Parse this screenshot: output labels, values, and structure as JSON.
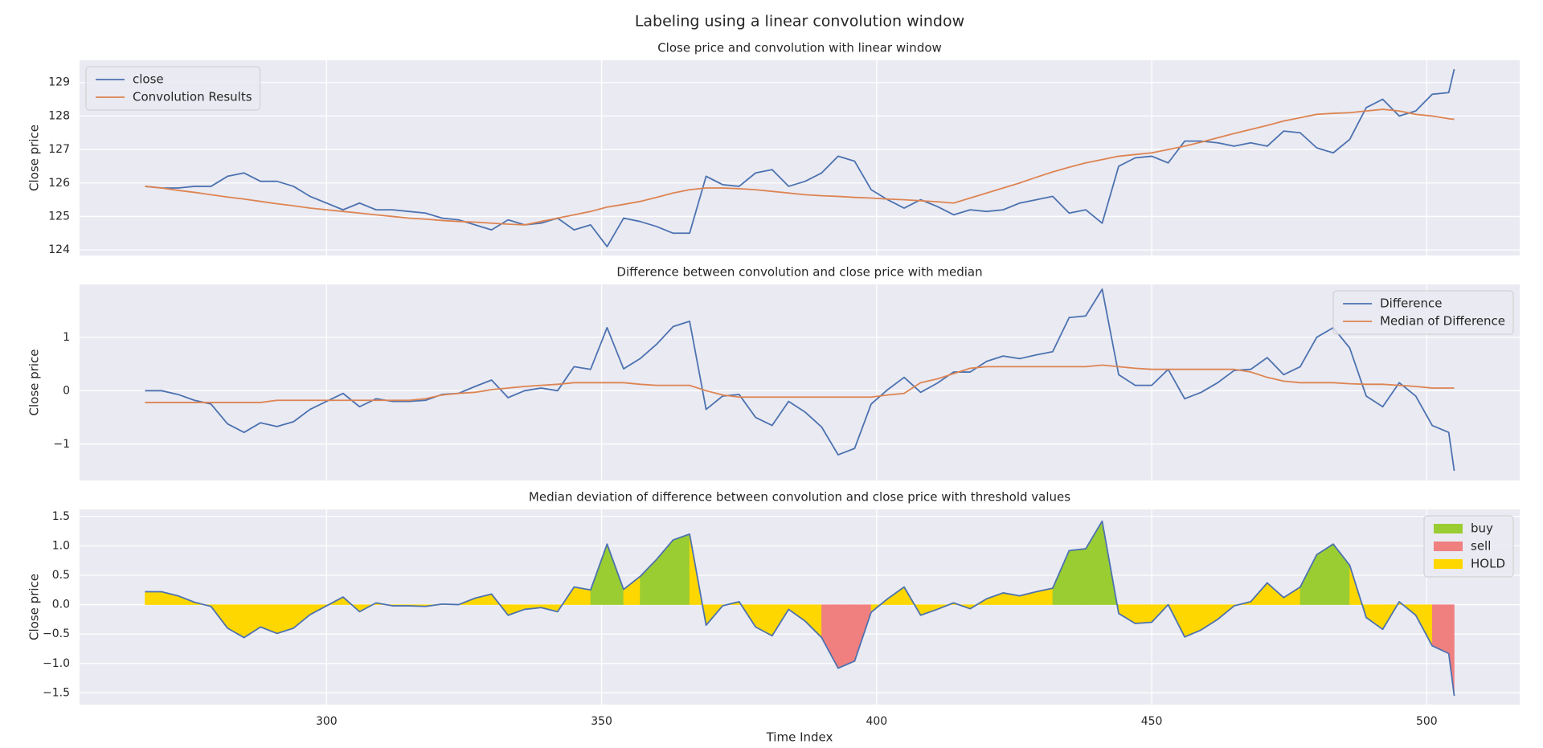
{
  "title": "Labeling using a linear convolution window",
  "chart_data": [
    {
      "type": "line",
      "title": "Close price and convolution with linear window",
      "ylabel": "Close price",
      "x": [
        267,
        270,
        273,
        276,
        279,
        282,
        285,
        288,
        291,
        294,
        297,
        300,
        303,
        306,
        309,
        312,
        315,
        318,
        321,
        324,
        327,
        330,
        333,
        336,
        339,
        342,
        345,
        348,
        351,
        354,
        357,
        360,
        363,
        366,
        369,
        372,
        375,
        378,
        381,
        384,
        387,
        390,
        393,
        396,
        399,
        402,
        405,
        408,
        411,
        414,
        417,
        420,
        423,
        426,
        429,
        432,
        435,
        438,
        441,
        444,
        447,
        450,
        453,
        456,
        459,
        462,
        465,
        468,
        471,
        474,
        477,
        480,
        483,
        486,
        489,
        492,
        495,
        498,
        501,
        504,
        505
      ],
      "series": [
        {
          "name": "close",
          "color": "#4c72b0",
          "values": [
            125.9,
            125.85,
            125.85,
            125.9,
            125.9,
            126.2,
            126.3,
            126.05,
            126.05,
            125.9,
            125.6,
            125.4,
            125.2,
            125.4,
            125.2,
            125.2,
            125.15,
            125.1,
            124.95,
            124.9,
            124.75,
            124.6,
            124.9,
            124.75,
            124.8,
            124.95,
            124.6,
            124.75,
            124.1,
            124.95,
            124.85,
            124.7,
            124.5,
            124.5,
            126.2,
            125.95,
            125.9,
            126.3,
            126.4,
            125.9,
            126.05,
            126.3,
            126.8,
            126.65,
            125.8,
            125.5,
            125.25,
            125.5,
            125.3,
            125.05,
            125.2,
            125.15,
            125.2,
            125.4,
            125.5,
            125.6,
            125.1,
            125.2,
            124.8,
            126.5,
            126.75,
            126.8,
            126.6,
            127.25,
            127.25,
            127.2,
            127.1,
            127.2,
            127.1,
            127.55,
            127.5,
            127.05,
            126.9,
            127.3,
            128.25,
            128.5,
            128.0,
            128.15,
            128.65,
            128.7,
            129.4
          ]
        },
        {
          "name": "Convolution Results",
          "color": "#dd8452",
          "values": [
            125.9,
            125.85,
            125.78,
            125.72,
            125.65,
            125.58,
            125.52,
            125.45,
            125.38,
            125.32,
            125.25,
            125.2,
            125.15,
            125.1,
            125.05,
            125.0,
            124.95,
            124.92,
            124.88,
            124.85,
            124.83,
            124.8,
            124.77,
            124.75,
            124.85,
            124.95,
            125.05,
            125.15,
            125.28,
            125.36,
            125.45,
            125.57,
            125.7,
            125.8,
            125.85,
            125.85,
            125.83,
            125.8,
            125.75,
            125.7,
            125.65,
            125.62,
            125.6,
            125.57,
            125.55,
            125.52,
            125.5,
            125.47,
            125.44,
            125.4,
            125.55,
            125.7,
            125.85,
            126.0,
            126.17,
            126.33,
            126.47,
            126.6,
            126.7,
            126.8,
            126.85,
            126.9,
            127.0,
            127.1,
            127.22,
            127.35,
            127.48,
            127.6,
            127.72,
            127.85,
            127.95,
            128.05,
            128.08,
            128.1,
            128.15,
            128.2,
            128.15,
            128.05,
            128.0,
            127.92,
            127.9
          ]
        }
      ],
      "xlim": [
        255.1,
        516.9
      ],
      "xticks": [
        300,
        350,
        400,
        450,
        500
      ],
      "ylim": [
        123.835,
        129.665
      ],
      "yticks": [
        124,
        125,
        126,
        127,
        128,
        129
      ],
      "grid": true,
      "legend": "upper left"
    },
    {
      "type": "line",
      "title": "Difference between convolution and close price with median",
      "ylabel": "Close price",
      "x": [
        267,
        270,
        273,
        276,
        279,
        282,
        285,
        288,
        291,
        294,
        297,
        300,
        303,
        306,
        309,
        312,
        315,
        318,
        321,
        324,
        327,
        330,
        333,
        336,
        339,
        342,
        345,
        348,
        351,
        354,
        357,
        360,
        363,
        366,
        369,
        372,
        375,
        378,
        381,
        384,
        387,
        390,
        393,
        396,
        399,
        402,
        405,
        408,
        411,
        414,
        417,
        420,
        423,
        426,
        429,
        432,
        435,
        438,
        441,
        444,
        447,
        450,
        453,
        456,
        459,
        462,
        465,
        468,
        471,
        474,
        477,
        480,
        483,
        486,
        489,
        492,
        495,
        498,
        501,
        504,
        505
      ],
      "series": [
        {
          "name": "Difference",
          "color": "#4c72b0",
          "values": [
            0,
            0,
            -0.07,
            -0.18,
            -0.25,
            -0.62,
            -0.78,
            -0.6,
            -0.67,
            -0.58,
            -0.35,
            -0.2,
            -0.05,
            -0.3,
            -0.15,
            -0.2,
            -0.2,
            -0.18,
            -0.07,
            -0.05,
            0.08,
            0.2,
            -0.13,
            0,
            0.05,
            0,
            0.45,
            0.4,
            1.18,
            0.41,
            0.6,
            0.87,
            1.2,
            1.3,
            -0.35,
            -0.1,
            -0.07,
            -0.5,
            -0.65,
            -0.2,
            -0.4,
            -0.68,
            -1.2,
            -1.08,
            -0.25,
            0.02,
            0.25,
            -0.03,
            0.14,
            0.35,
            0.35,
            0.55,
            0.65,
            0.6,
            0.67,
            0.73,
            1.37,
            1.4,
            1.9,
            0.3,
            0.1,
            0.1,
            0.4,
            -0.15,
            -0.03,
            0.15,
            0.38,
            0.4,
            0.62,
            0.3,
            0.45,
            1.0,
            1.18,
            0.8,
            -0.1,
            -0.3,
            0.15,
            -0.1,
            -0.65,
            -0.78,
            -1.5
          ]
        },
        {
          "name": "Median of Difference",
          "color": "#dd8452",
          "values": [
            -0.22,
            -0.22,
            -0.22,
            -0.22,
            -0.22,
            -0.22,
            -0.22,
            -0.22,
            -0.18,
            -0.18,
            -0.18,
            -0.18,
            -0.18,
            -0.18,
            -0.18,
            -0.18,
            -0.18,
            -0.15,
            -0.08,
            -0.05,
            -0.03,
            0.02,
            0.05,
            0.08,
            0.1,
            0.12,
            0.15,
            0.15,
            0.15,
            0.15,
            0.12,
            0.1,
            0.1,
            0.1,
            0,
            -0.08,
            -0.12,
            -0.12,
            -0.12,
            -0.12,
            -0.12,
            -0.12,
            -0.12,
            -0.12,
            -0.12,
            -0.08,
            -0.05,
            0.15,
            0.22,
            0.32,
            0.42,
            0.45,
            0.45,
            0.45,
            0.45,
            0.45,
            0.45,
            0.45,
            0.48,
            0.45,
            0.42,
            0.4,
            0.4,
            0.4,
            0.4,
            0.4,
            0.4,
            0.35,
            0.25,
            0.18,
            0.15,
            0.15,
            0.15,
            0.13,
            0.12,
            0.12,
            0.1,
            0.08,
            0.05,
            0.05,
            0.05
          ]
        }
      ],
      "xlim": [
        255.1,
        516.9
      ],
      "xticks": [
        300,
        350,
        400,
        450,
        500
      ],
      "ylim": [
        -1.68,
        1.99
      ],
      "yticks": [
        {
          "value": -1,
          "label": "−1"
        },
        0,
        1
      ],
      "grid": true,
      "legend": "upper right"
    },
    {
      "type": "area",
      "title": "Median deviation of difference between convolution and close price with threshold values",
      "ylabel": "Close price",
      "xlabel": "Time Index",
      "x": [
        267,
        270,
        273,
        276,
        279,
        282,
        285,
        288,
        291,
        294,
        297,
        300,
        303,
        306,
        309,
        312,
        315,
        318,
        321,
        324,
        327,
        330,
        333,
        336,
        339,
        342,
        345,
        348,
        351,
        354,
        357,
        360,
        363,
        366,
        369,
        372,
        375,
        378,
        381,
        384,
        387,
        390,
        393,
        396,
        399,
        402,
        405,
        408,
        411,
        414,
        417,
        420,
        423,
        426,
        429,
        432,
        435,
        438,
        441,
        444,
        447,
        450,
        453,
        456,
        459,
        462,
        465,
        468,
        471,
        474,
        477,
        480,
        483,
        486,
        489,
        492,
        495,
        498,
        501,
        504,
        505
      ],
      "values": [
        0.22,
        0.22,
        0.15,
        0.04,
        -0.03,
        -0.4,
        -0.56,
        -0.38,
        -0.49,
        -0.4,
        -0.17,
        -0.02,
        0.13,
        -0.12,
        0.03,
        -0.02,
        -0.02,
        -0.03,
        0.01,
        0,
        0.11,
        0.18,
        -0.18,
        -0.08,
        -0.05,
        -0.12,
        0.3,
        0.25,
        1.03,
        0.26,
        0.48,
        0.77,
        1.1,
        1.2,
        -0.35,
        -0.02,
        0.05,
        -0.38,
        -0.53,
        -0.08,
        -0.28,
        -0.56,
        -1.08,
        -0.96,
        -0.13,
        0.1,
        0.3,
        -0.18,
        -0.08,
        0.03,
        -0.07,
        0.1,
        0.2,
        0.15,
        0.22,
        0.28,
        0.92,
        0.95,
        1.42,
        -0.15,
        -0.32,
        -0.3,
        0,
        -0.55,
        -0.43,
        -0.25,
        -0.02,
        0.05,
        0.37,
        0.12,
        0.3,
        0.85,
        1.03,
        0.67,
        -0.22,
        -0.42,
        0.05,
        -0.18,
        -0.7,
        -0.83,
        -1.55
      ],
      "color": "#4c72b0",
      "classes": [
        {
          "name": "buy",
          "color": "#9acd32",
          "min": 0.5
        },
        {
          "name": "sell",
          "color": "#f08080",
          "max": -0.5
        },
        {
          "name": "HOLD",
          "color": "#ffd700"
        }
      ],
      "xlim": [
        255.1,
        516.9
      ],
      "xticks": [
        300,
        350,
        400,
        450,
        500
      ],
      "ylim": [
        -1.7,
        1.62
      ],
      "yticks": [
        {
          "value": -1.5,
          "label": "−1.5"
        },
        {
          "value": -1,
          "label": "−1.0"
        },
        {
          "value": -0.5,
          "label": "−0.5"
        },
        {
          "value": 0,
          "label": "0.0"
        },
        0.5,
        {
          "value": 1,
          "label": "1.0"
        },
        1.5
      ],
      "grid": true,
      "legend": "upper right"
    }
  ]
}
